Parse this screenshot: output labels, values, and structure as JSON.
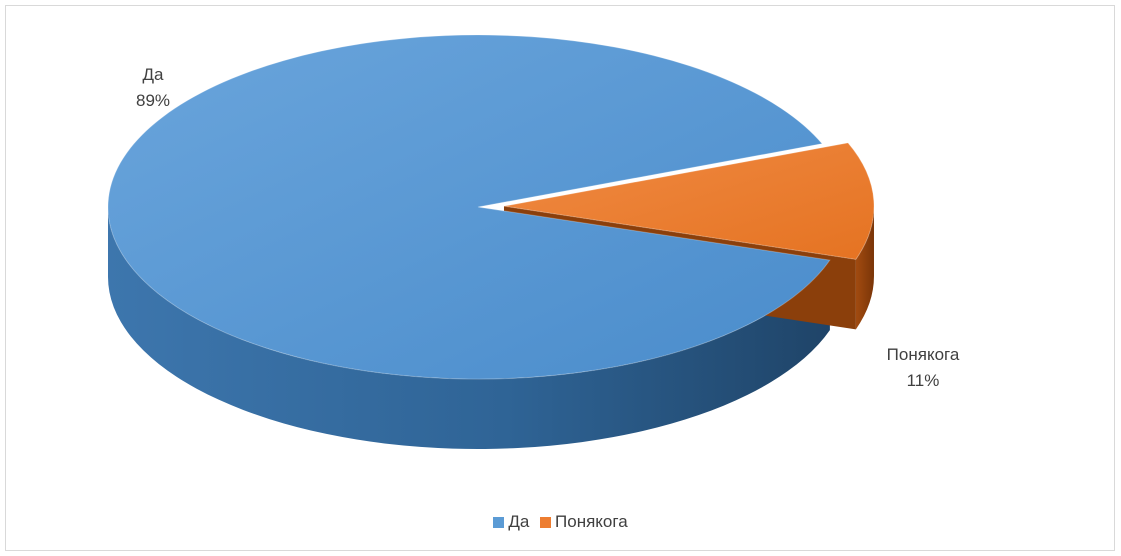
{
  "chart_data": {
    "type": "pie",
    "style": "3d-exploded",
    "categories": [
      "Да",
      "Понякога"
    ],
    "values": [
      89,
      11
    ],
    "data_labels": [
      {
        "category": "Да",
        "percent": "89%"
      },
      {
        "category": "Понякога",
        "percent": "11%"
      }
    ],
    "colors": [
      "#5b9bd5",
      "#ed7d31"
    ],
    "legend": {
      "position": "bottom",
      "items": [
        {
          "label": "Да",
          "color": "#5b9bd5"
        },
        {
          "label": "Понякога",
          "color": "#ed7d31"
        }
      ]
    }
  }
}
